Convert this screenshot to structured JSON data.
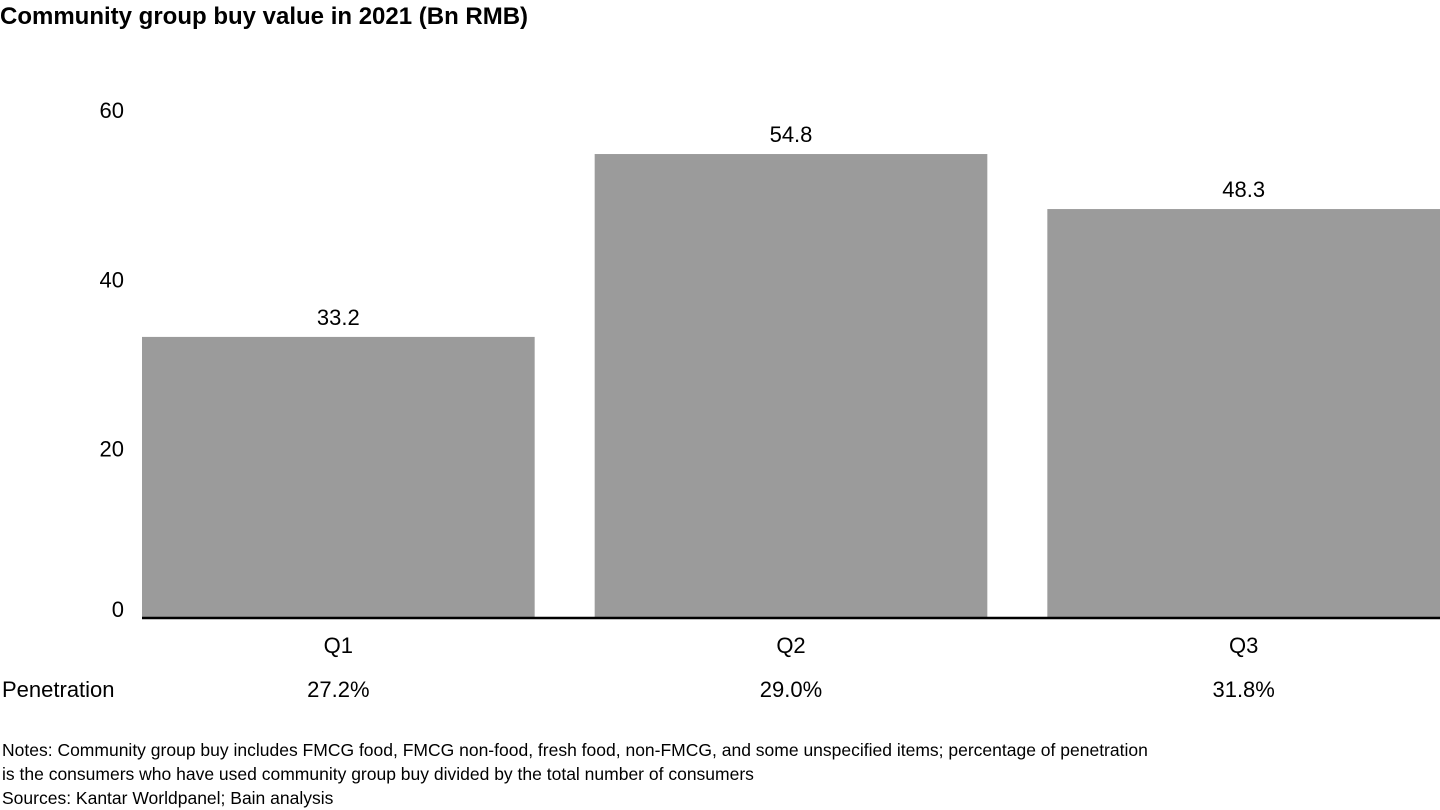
{
  "chart_data": {
    "type": "bar",
    "title": "Community group buy value in 2021 (Bn RMB)",
    "categories": [
      "Q1",
      "Q2",
      "Q3"
    ],
    "values": [
      33.2,
      54.8,
      48.3
    ],
    "value_labels": [
      "33.2",
      "54.8",
      "48.3"
    ],
    "ylim": [
      0,
      60
    ],
    "yticks": [
      0,
      20,
      40,
      60
    ],
    "grid": false,
    "bar_color": "#9b9b9b",
    "axis_color": "#000000",
    "penetration": {
      "label": "Penetration",
      "values": [
        "27.2%",
        "29.0%",
        "31.8%"
      ]
    }
  },
  "notes": {
    "line1": "Notes: Community group buy includes FMCG food, FMCG non-food, fresh food, non-FMCG, and some unspecified items; percentage of penetration",
    "line2": "is the consumers who have used community group buy divided by the total number of consumers",
    "sources": "Sources: Kantar Worldpanel; Bain analysis"
  }
}
